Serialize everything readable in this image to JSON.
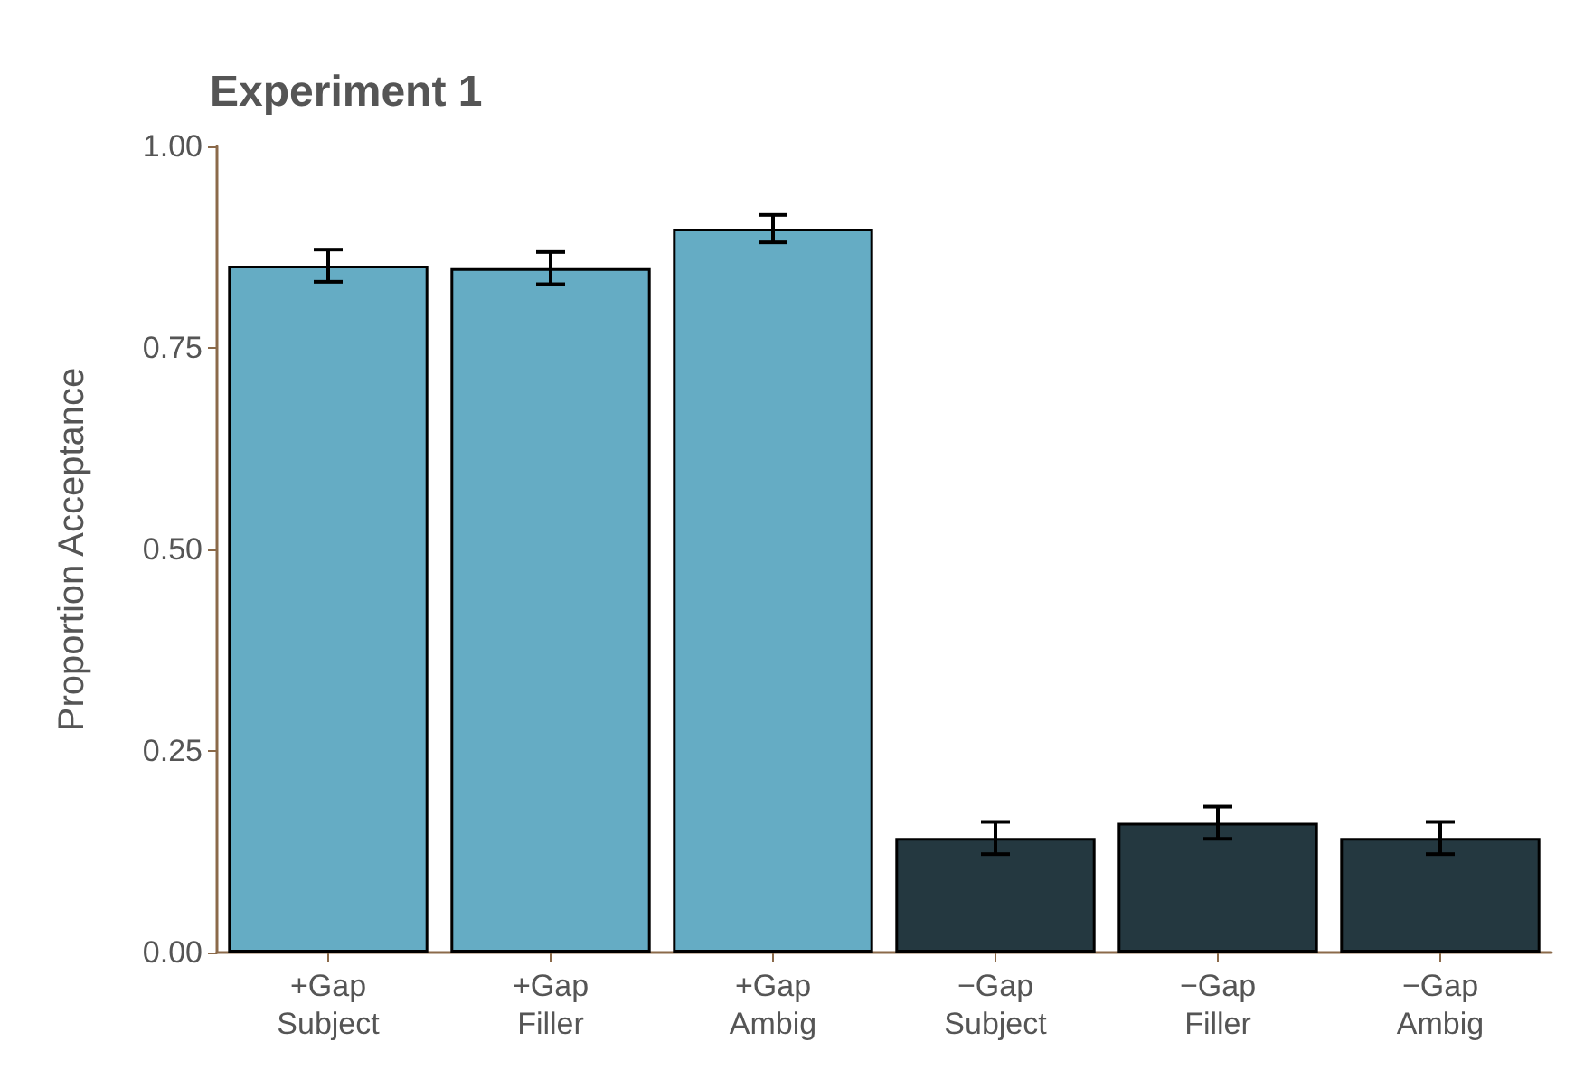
{
  "chart_data": {
    "type": "bar",
    "title": "Experiment 1",
    "ylabel": "Proportion Acceptance",
    "categories": [
      "+Gap\nSubject",
      "+Gap\nFiller",
      "+Gap\nAmbig",
      "−Gap\nSubject",
      "−Gap\nFiller",
      "−Gap\nAmbig"
    ],
    "values": [
      0.852,
      0.849,
      0.898,
      0.142,
      0.161,
      0.142
    ],
    "errors": [
      0.02,
      0.02,
      0.017,
      0.02,
      0.02,
      0.02
    ],
    "colors": [
      "#65acc4",
      "#65acc4",
      "#65acc4",
      "#243840",
      "#243840",
      "#243840"
    ],
    "ylim": [
      0,
      1
    ],
    "yticks": [
      {
        "value": 0,
        "label": "0.00"
      },
      {
        "value": 0.25,
        "label": "0.25"
      },
      {
        "value": 0.5,
        "label": "0.50"
      },
      {
        "value": 0.75,
        "label": "0.75"
      },
      {
        "value": 1,
        "label": "1.00"
      }
    ],
    "grid": false
  }
}
